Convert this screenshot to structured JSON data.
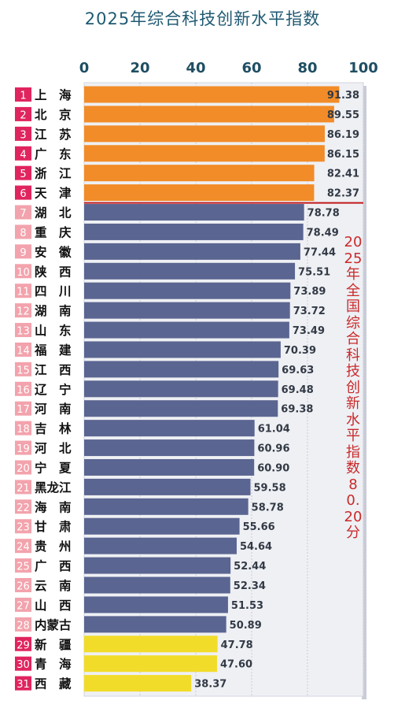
{
  "chart_data": {
    "type": "bar",
    "orientation": "horizontal",
    "title": "2025年综合科技创新水平指数",
    "annotation": "2025年全国综合科技创新水平指数80.20分",
    "national_average": 80.2,
    "xlim": [
      0,
      100
    ],
    "xticks": [
      0,
      20,
      40,
      60,
      80,
      100
    ],
    "grid": true,
    "colors": {
      "top_tier": "#f28c28",
      "middle_tier": "#5b6591",
      "bottom_tier": "#f2dc2a",
      "rank_box_top": "#e0245e",
      "rank_box_light": "#f3a3ad",
      "average_line": "#c0191c"
    },
    "ranks": [
      "1",
      "2",
      "3",
      "4",
      "5",
      "6",
      "7",
      "8",
      "9",
      "10",
      "11",
      "12",
      "13",
      "14",
      "15",
      "16",
      "17",
      "18",
      "19",
      "20",
      "21",
      "22",
      "23",
      "24",
      "25",
      "26",
      "27",
      "28",
      "29",
      "30",
      "31"
    ],
    "categories": [
      "上　海",
      "北　京",
      "江　苏",
      "广　东",
      "浙　江",
      "天　津",
      "湖　北",
      "重　庆",
      "安　徽",
      "陕　西",
      "四　川",
      "湖　南",
      "山　东",
      "福　建",
      "江　西",
      "辽　宁",
      "河　南",
      "吉　林",
      "河　北",
      "宁　夏",
      "黑龙江",
      "海　南",
      "甘　肃",
      "贵　州",
      "广　西",
      "云　南",
      "山　西",
      "内蒙古",
      "新　疆",
      "青　海",
      "西　藏"
    ],
    "values": [
      91.38,
      89.55,
      86.19,
      86.15,
      82.41,
      82.37,
      78.78,
      78.49,
      77.44,
      75.51,
      73.89,
      73.72,
      73.49,
      70.39,
      69.63,
      69.48,
      69.38,
      61.04,
      60.96,
      60.9,
      59.58,
      58.78,
      55.66,
      54.64,
      52.44,
      52.34,
      51.53,
      50.89,
      47.78,
      47.6,
      38.37
    ],
    "value_labels": [
      "91.38",
      "89.55",
      "86.19",
      "86.15",
      "82.41",
      "82.37",
      "78.78",
      "78.49",
      "77.44",
      "75.51",
      "73.89",
      "73.72",
      "73.49",
      "70.39",
      "69.63",
      "69.48",
      "69.38",
      "61.04",
      "60.96",
      "60.90",
      "59.58",
      "58.78",
      "55.66",
      "54.64",
      "52.44",
      "52.34",
      "51.53",
      "50.89",
      "47.78",
      "47.60",
      "38.37"
    ],
    "tiers": [
      "top",
      "top",
      "top",
      "top",
      "top",
      "top",
      "middle",
      "middle",
      "middle",
      "middle",
      "middle",
      "middle",
      "middle",
      "middle",
      "middle",
      "middle",
      "middle",
      "middle",
      "middle",
      "middle",
      "middle",
      "middle",
      "middle",
      "middle",
      "middle",
      "middle",
      "middle",
      "middle",
      "bottom",
      "bottom",
      "bottom"
    ]
  }
}
